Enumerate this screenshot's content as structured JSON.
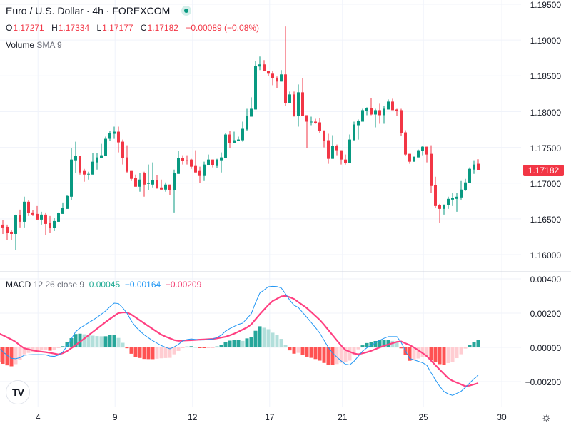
{
  "header": {
    "symbol": "Euro / U.S. Dollar · 4h · FOREXCOM",
    "o_label": "O",
    "o": "1.17271",
    "h_label": "H",
    "h": "1.17334",
    "l_label": "L",
    "l": "1.17177",
    "c_label": "C",
    "c": "1.17182",
    "change": "−0.00089 (−0.08%)",
    "volume_label": "Volume",
    "volume_params": "SMA 9"
  },
  "macd_legend": {
    "name": "MACD",
    "params": "12 26 close 9",
    "histogram": "0.00045",
    "macd": "−0.00164",
    "signal": "−0.00209"
  },
  "colors": {
    "up": "#089981",
    "down": "#f23645",
    "hist_up_strong": "#26a69a",
    "hist_up_weak": "#b2dfdb",
    "hist_down_strong": "#ff5252",
    "hist_down_weak": "#ffcdd2",
    "macd_line": "#2196f3",
    "signal_line": "#ff4081",
    "legend_hist": "#22ab94"
  },
  "price_axis": [
    "1.19500",
    "1.19000",
    "1.18500",
    "1.18000",
    "1.17500",
    "1.17000",
    "1.16500",
    "1.16000"
  ],
  "last_price": "1.17182",
  "macd_axis": [
    "0.00400",
    "0.00200",
    "0.00000",
    "−0.00200"
  ],
  "time_axis": [
    {
      "label": "4",
      "bar": 9.2
    },
    {
      "label": "9",
      "bar": 27.2
    },
    {
      "label": "12",
      "bar": 45.3
    },
    {
      "label": "17",
      "bar": 63.3
    },
    {
      "label": "21",
      "bar": 80.3
    },
    {
      "label": "25",
      "bar": 99.2
    },
    {
      "label": "30",
      "bar": 117.5
    }
  ],
  "chart_data": {
    "type": "candlestick",
    "symbol": "EURUSD",
    "interval": "4h",
    "ylim": [
      1.1555,
      1.1956
    ],
    "price_ticks": [
      1.195,
      1.19,
      1.185,
      1.18,
      1.175,
      1.17,
      1.165,
      1.16
    ],
    "last_close": 1.17182,
    "candles_ohlc": [
      [
        1.1616,
        1.1646,
        1.1611,
        1.1643
      ],
      [
        1.1642,
        1.1648,
        1.1629,
        1.1638
      ],
      [
        1.1639,
        1.1642,
        1.162,
        1.163
      ],
      [
        1.1632,
        1.1634,
        1.162,
        1.1629
      ],
      [
        1.1629,
        1.1656,
        1.1606,
        1.1655
      ],
      [
        1.1655,
        1.1663,
        1.1638,
        1.1646
      ],
      [
        1.1646,
        1.1681,
        1.1638,
        1.1674
      ],
      [
        1.1674,
        1.1676,
        1.1654,
        1.1658
      ],
      [
        1.1659,
        1.1662,
        1.1654,
        1.1656
      ],
      [
        1.1657,
        1.1668,
        1.1649,
        1.1649
      ],
      [
        1.1649,
        1.166,
        1.1642,
        1.1656
      ],
      [
        1.1656,
        1.1659,
        1.1628,
        1.1643
      ],
      [
        1.1644,
        1.1654,
        1.163,
        1.1637
      ],
      [
        1.1637,
        1.1651,
        1.1633,
        1.1647
      ],
      [
        1.1646,
        1.1659,
        1.1646,
        1.1658
      ],
      [
        1.1657,
        1.1673,
        1.1657,
        1.1665
      ],
      [
        1.1664,
        1.1683,
        1.1664,
        1.1682
      ],
      [
        1.1681,
        1.1749,
        1.1676,
        1.1733
      ],
      [
        1.1732,
        1.1758,
        1.1714,
        1.1738
      ],
      [
        1.1738,
        1.1738,
        1.1712,
        1.1715
      ],
      [
        1.1717,
        1.172,
        1.1702,
        1.1712
      ],
      [
        1.1712,
        1.1716,
        1.1705,
        1.1713
      ],
      [
        1.1712,
        1.1742,
        1.1712,
        1.173
      ],
      [
        1.1729,
        1.1742,
        1.1719,
        1.1736
      ],
      [
        1.1735,
        1.1755,
        1.1735,
        1.1739
      ],
      [
        1.1738,
        1.1765,
        1.1738,
        1.1762
      ],
      [
        1.1762,
        1.1773,
        1.1759,
        1.177
      ],
      [
        1.1769,
        1.1779,
        1.1762,
        1.1772
      ],
      [
        1.1772,
        1.1779,
        1.1743,
        1.1757
      ],
      [
        1.1758,
        1.1761,
        1.1726,
        1.1735
      ],
      [
        1.1736,
        1.1753,
        1.1714,
        1.1716
      ],
      [
        1.1717,
        1.1717,
        1.1703,
        1.1706
      ],
      [
        1.1707,
        1.1712,
        1.1695,
        1.1695
      ],
      [
        1.1695,
        1.1714,
        1.1688,
        1.1705
      ],
      [
        1.1714,
        1.1716,
        1.1681,
        1.1698
      ],
      [
        1.1699,
        1.1726,
        1.169,
        1.17
      ],
      [
        1.1698,
        1.1729,
        1.1694,
        1.1704
      ],
      [
        1.1704,
        1.1711,
        1.1692,
        1.1693
      ],
      [
        1.1694,
        1.1705,
        1.1691,
        1.1691
      ],
      [
        1.1691,
        1.1701,
        1.1688,
        1.1698
      ],
      [
        1.1698,
        1.1698,
        1.1683,
        1.169
      ],
      [
        1.169,
        1.1719,
        1.1659,
        1.1714
      ],
      [
        1.1713,
        1.1745,
        1.1713,
        1.1735
      ],
      [
        1.1735,
        1.1739,
        1.1726,
        1.1731
      ],
      [
        1.1732,
        1.1739,
        1.1726,
        1.1731
      ],
      [
        1.1733,
        1.1734,
        1.172,
        1.1723
      ],
      [
        1.1724,
        1.1746,
        1.1715,
        1.1715
      ],
      [
        1.1717,
        1.1723,
        1.17,
        1.171
      ],
      [
        1.171,
        1.173,
        1.1703,
        1.1726
      ],
      [
        1.1725,
        1.174,
        1.1725,
        1.1733
      ],
      [
        1.1733,
        1.1733,
        1.1722,
        1.1725
      ],
      [
        1.1724,
        1.1734,
        1.1721,
        1.1733
      ],
      [
        1.1732,
        1.1743,
        1.1715,
        1.1736
      ],
      [
        1.1735,
        1.177,
        1.1735,
        1.1768
      ],
      [
        1.1768,
        1.1773,
        1.1749,
        1.1756
      ],
      [
        1.1756,
        1.1772,
        1.1756,
        1.176
      ],
      [
        1.1759,
        1.1765,
        1.1759,
        1.1761
      ],
      [
        1.176,
        1.1786,
        1.1758,
        1.1776
      ],
      [
        1.1775,
        1.1804,
        1.1773,
        1.1794
      ],
      [
        1.1793,
        1.182,
        1.1793,
        1.1804
      ],
      [
        1.1803,
        1.1871,
        1.1803,
        1.1864
      ],
      [
        1.1863,
        1.1877,
        1.1858,
        1.1866
      ],
      [
        1.1866,
        1.1872,
        1.1857,
        1.1857
      ],
      [
        1.1857,
        1.1857,
        1.185,
        1.1853
      ],
      [
        1.1853,
        1.1857,
        1.1837,
        1.1847
      ],
      [
        1.1847,
        1.1849,
        1.1833,
        1.1842
      ],
      [
        1.1842,
        1.1858,
        1.1842,
        1.1852
      ],
      [
        1.1852,
        1.1919,
        1.1808,
        1.1812
      ],
      [
        1.1812,
        1.1828,
        1.1812,
        1.1824
      ],
      [
        1.1824,
        1.1828,
        1.1793,
        1.1794
      ],
      [
        1.1794,
        1.1838,
        1.1779,
        1.1827
      ],
      [
        1.1827,
        1.1847,
        1.1794,
        1.1794
      ],
      [
        1.1795,
        1.1795,
        1.1749,
        1.1786
      ],
      [
        1.1786,
        1.1793,
        1.1781,
        1.1786
      ],
      [
        1.1786,
        1.179,
        1.1783,
        1.1784
      ],
      [
        1.1785,
        1.1791,
        1.177,
        1.1773
      ],
      [
        1.1773,
        1.1774,
        1.175,
        1.1759
      ],
      [
        1.176,
        1.1769,
        1.1727,
        1.1734
      ],
      [
        1.1734,
        1.1767,
        1.1734,
        1.1752
      ],
      [
        1.1752,
        1.1754,
        1.1739,
        1.1746
      ],
      [
        1.1746,
        1.1746,
        1.1726,
        1.1733
      ],
      [
        1.1733,
        1.174,
        1.1726,
        1.1728
      ],
      [
        1.1728,
        1.1768,
        1.1728,
        1.1761
      ],
      [
        1.176,
        1.1786,
        1.176,
        1.1782
      ],
      [
        1.1781,
        1.1789,
        1.1761,
        1.1787
      ],
      [
        1.1786,
        1.1804,
        1.1786,
        1.1802
      ],
      [
        1.1801,
        1.1806,
        1.1795,
        1.1805
      ],
      [
        1.1805,
        1.1819,
        1.1795,
        1.1796
      ],
      [
        1.1796,
        1.1804,
        1.1778,
        1.1802
      ],
      [
        1.1802,
        1.1811,
        1.1783,
        1.1795
      ],
      [
        1.1795,
        1.1808,
        1.1783,
        1.1804
      ],
      [
        1.1803,
        1.1817,
        1.1803,
        1.1814
      ],
      [
        1.1814,
        1.1818,
        1.1802,
        1.1802
      ],
      [
        1.1803,
        1.1804,
        1.1794,
        1.1801
      ],
      [
        1.1802,
        1.1804,
        1.1766,
        1.177
      ],
      [
        1.1771,
        1.1774,
        1.1738,
        1.174
      ],
      [
        1.1741,
        1.1741,
        1.1727,
        1.173
      ],
      [
        1.173,
        1.1737,
        1.173,
        1.1737
      ],
      [
        1.1736,
        1.1747,
        1.1736,
        1.1746
      ],
      [
        1.1745,
        1.1752,
        1.1739,
        1.1751
      ],
      [
        1.1751,
        1.1751,
        1.1729,
        1.174
      ],
      [
        1.1741,
        1.1753,
        1.1686,
        1.1696
      ],
      [
        1.1697,
        1.1709,
        1.1665,
        1.1668
      ],
      [
        1.1669,
        1.1671,
        1.1644,
        1.1664
      ],
      [
        1.1664,
        1.167,
        1.1656,
        1.167
      ],
      [
        1.1669,
        1.1681,
        1.1664,
        1.1678
      ],
      [
        1.1677,
        1.1686,
        1.1668,
        1.1679
      ],
      [
        1.1678,
        1.1686,
        1.166,
        1.1681
      ],
      [
        1.168,
        1.1703,
        1.1677,
        1.1691
      ],
      [
        1.169,
        1.1706,
        1.1689,
        1.1701
      ],
      [
        1.17,
        1.1722,
        1.17,
        1.172
      ],
      [
        1.1719,
        1.1732,
        1.1713,
        1.1726
      ],
      [
        1.17271,
        1.17334,
        1.17177,
        1.17182
      ]
    ],
    "macd": {
      "ylim": [
        -0.0035,
        0.0043
      ],
      "ticks": [
        0.004,
        0.002,
        0,
        -0.002
      ],
      "macd_points": [
        [
          0,
          -4e-05
        ],
        [
          2.8,
          -0.00063
        ],
        [
          3.7,
          -0.00067
        ],
        [
          4.8,
          -0.00063
        ],
        [
          5.8,
          -0.00046
        ],
        [
          7.5,
          -0.00042
        ],
        [
          10.8,
          -0.00042
        ],
        [
          12.5,
          -0.00054
        ],
        [
          13.7,
          -0.0005
        ],
        [
          15.3,
          -0.00021
        ],
        [
          17,
          0.0005
        ],
        [
          18.2,
          0.001
        ],
        [
          20.3,
          0.00133
        ],
        [
          22.5,
          0.00167
        ],
        [
          24.8,
          0.00208
        ],
        [
          26.5,
          0.0025
        ],
        [
          27.3,
          0.00263
        ],
        [
          28.2,
          0.00254
        ],
        [
          29.8,
          0.00208
        ],
        [
          31.5,
          0.00133
        ],
        [
          33.7,
          0.00079
        ],
        [
          35.8,
          0.00042
        ],
        [
          38.2,
          8e-05
        ],
        [
          40,
          -8e-05
        ],
        [
          41.5,
          8e-05
        ],
        [
          43.2,
          0.00042
        ],
        [
          44.8,
          0.0005
        ],
        [
          47.5,
          0.00042
        ],
        [
          50.3,
          0.0005
        ],
        [
          52,
          0.00071
        ],
        [
          53.2,
          0.001
        ],
        [
          55.8,
          0.00133
        ],
        [
          57,
          0.00142
        ],
        [
          59,
          0.00196
        ],
        [
          60.8,
          0.00313
        ],
        [
          63.2,
          0.00358
        ],
        [
          65.8,
          0.00354
        ],
        [
          67,
          0.00313
        ],
        [
          68.7,
          0.0025
        ],
        [
          70,
          0.00233
        ],
        [
          72,
          0.00175
        ],
        [
          74.8,
          0.00092
        ],
        [
          77.5,
          -0.00021
        ],
        [
          79.8,
          -0.00075
        ],
        [
          81.5,
          -0.00108
        ],
        [
          82.5,
          -0.00096
        ],
        [
          85.3,
          -0.00013
        ],
        [
          88.7,
          0.00038
        ],
        [
          90.8,
          0.00063
        ],
        [
          93.2,
          0.00063
        ],
        [
          94.2,
          0.00021
        ],
        [
          95.8,
          -0.00063
        ],
        [
          98.2,
          -0.00083
        ],
        [
          99.8,
          -0.00096
        ],
        [
          101.5,
          -0.00171
        ],
        [
          103.7,
          -0.00254
        ],
        [
          105.8,
          -0.00283
        ],
        [
          108.2,
          -0.00254
        ],
        [
          110.8,
          -0.00188
        ],
        [
          112,
          -0.00164
        ]
      ],
      "signal_points": [
        [
          0,
          0.00083
        ],
        [
          3.7,
          0.00038
        ],
        [
          5.8,
          -4e-05
        ],
        [
          8.7,
          -0.00021
        ],
        [
          11.5,
          -0.00029
        ],
        [
          14.2,
          -0.00042
        ],
        [
          15.8,
          -0.00025
        ],
        [
          18.2,
          0.00017
        ],
        [
          22.5,
          0.001
        ],
        [
          25.8,
          0.00163
        ],
        [
          28.2,
          0.00204
        ],
        [
          30.3,
          0.00204
        ],
        [
          33.7,
          0.00146
        ],
        [
          38.2,
          0.00071
        ],
        [
          41.5,
          0.00038
        ],
        [
          44.8,
          0.00042
        ],
        [
          50.3,
          0.0005
        ],
        [
          53.2,
          0.00063
        ],
        [
          55.3,
          0.00083
        ],
        [
          58.7,
          0.00125
        ],
        [
          60.8,
          0.00188
        ],
        [
          63.7,
          0.00267
        ],
        [
          66.5,
          0.00304
        ],
        [
          68.7,
          0.00288
        ],
        [
          72,
          0.00229
        ],
        [
          75.3,
          0.00154
        ],
        [
          78.7,
          0.0005
        ],
        [
          80.8,
          -0.00013
        ],
        [
          83.7,
          -0.00042
        ],
        [
          86.5,
          -0.00025
        ],
        [
          89.8,
          8e-05
        ],
        [
          93.7,
          0.00038
        ],
        [
          96.5,
          8e-05
        ],
        [
          99.8,
          -0.00046
        ],
        [
          102.5,
          -0.00117
        ],
        [
          105.3,
          -0.00188
        ],
        [
          109.2,
          -0.00229
        ],
        [
          112,
          -0.00209
        ]
      ]
    }
  }
}
